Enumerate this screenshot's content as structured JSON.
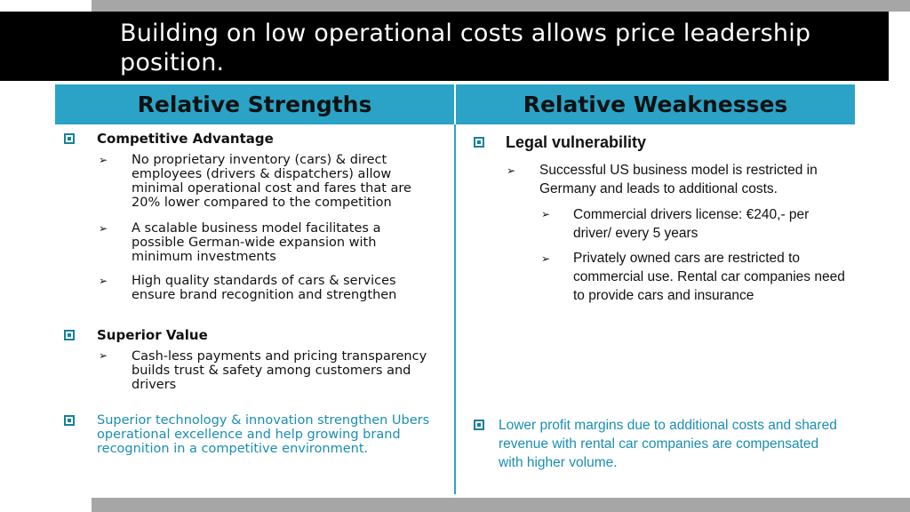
{
  "title": "Building on low operational costs allows price leadership position.",
  "headers": {
    "left": "Relative Strengths",
    "right": "Relative Weaknesses"
  },
  "icons": {
    "bullet": "square-bullet-icon",
    "sub_bullet": "arrow-bullet-icon"
  },
  "colors": {
    "accent": "#2aa3c7",
    "title_bg": "#000000",
    "bar": "#a6a6a6",
    "teal_text": "#1a8eb3"
  },
  "strengths": {
    "s1_heading": "Competitive Advantage",
    "s1_item1": "No proprietary inventory (cars) & direct employees (drivers & dispatchers) allow minimal operational cost and fares that are 20% lower compared to the competition",
    "s1_item2": "A scalable business model facilitates a possible German-wide expansion with minimum investments",
    "s1_item3": "High quality standards of cars & services ensure brand recognition and strengthen",
    "s2_heading": "Superior Value",
    "s2_item1": "Cash-less payments and pricing transparency builds trust & safety among customers and drivers",
    "s3_text": "Superior technology & innovation strengthen Ubers operational excellence and help growing brand recognition in a competitive environment."
  },
  "weaknesses": {
    "w1_heading": "Legal vulnerability",
    "w1_item1": "Successful US business model is restricted in Germany and leads to additional costs.",
    "w1_sub1": "Commercial drivers license: €240,- per driver/ every 5 years",
    "w1_sub2": "Privately owned cars are restricted to commercial use. Rental car companies need to provide cars and insurance",
    "w2_text": "Lower profit margins due to additional costs and shared revenue with rental car companies are compensated with higher volume."
  }
}
